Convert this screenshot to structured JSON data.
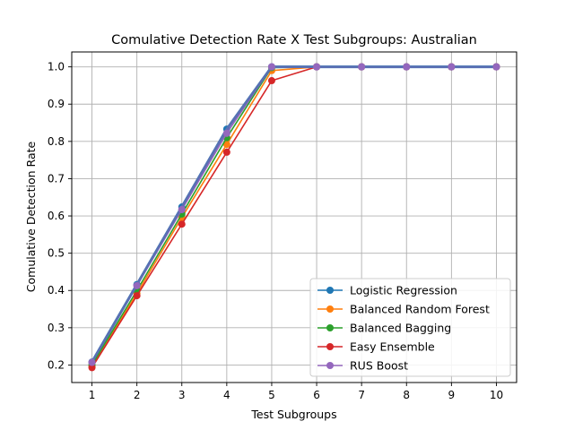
{
  "chart_data": {
    "type": "line",
    "title": "Comulative Detection Rate X Test Subgroups: Australian",
    "xlabel": "Test Subgroups",
    "ylabel": "Comulative Detection Rate",
    "x": [
      1,
      2,
      3,
      4,
      5,
      6,
      7,
      8,
      9,
      10
    ],
    "xlim": [
      0.55,
      10.45
    ],
    "ylim": [
      0.153,
      1.04
    ],
    "yticks": [
      0.2,
      0.3,
      0.4,
      0.5,
      0.6,
      0.7,
      0.8,
      0.9,
      1.0
    ],
    "ytick_labels": [
      "0.2",
      "0.3",
      "0.4",
      "0.5",
      "0.6",
      "0.7",
      "0.8",
      "0.9",
      "1.0"
    ],
    "grid": true,
    "legend_position": "lower-right",
    "series": [
      {
        "name": "Logistic Regression",
        "color": "#1f77b4",
        "values": [
          0.208,
          0.416,
          0.624,
          0.833,
          1.0,
          1.0,
          1.0,
          1.0,
          1.0,
          1.0
        ]
      },
      {
        "name": "Balanced Random Forest",
        "color": "#ff7f0e",
        "values": [
          0.196,
          0.392,
          0.596,
          0.792,
          0.99,
          1.0,
          1.0,
          1.0,
          1.0,
          1.0
        ]
      },
      {
        "name": "Balanced Bagging",
        "color": "#2ca02c",
        "values": [
          0.2,
          0.4,
          0.605,
          0.81,
          0.998,
          1.0,
          1.0,
          1.0,
          1.0,
          1.0
        ]
      },
      {
        "name": "Easy Ensemble",
        "color": "#d62728",
        "values": [
          0.193,
          0.386,
          0.578,
          0.771,
          0.963,
          1.0,
          1.0,
          1.0,
          1.0,
          1.0
        ]
      },
      {
        "name": "RUS Boost",
        "color": "#9467bd",
        "values": [
          0.207,
          0.413,
          0.617,
          0.822,
          1.0,
          1.0,
          1.0,
          1.0,
          1.0,
          1.0
        ]
      }
    ]
  }
}
